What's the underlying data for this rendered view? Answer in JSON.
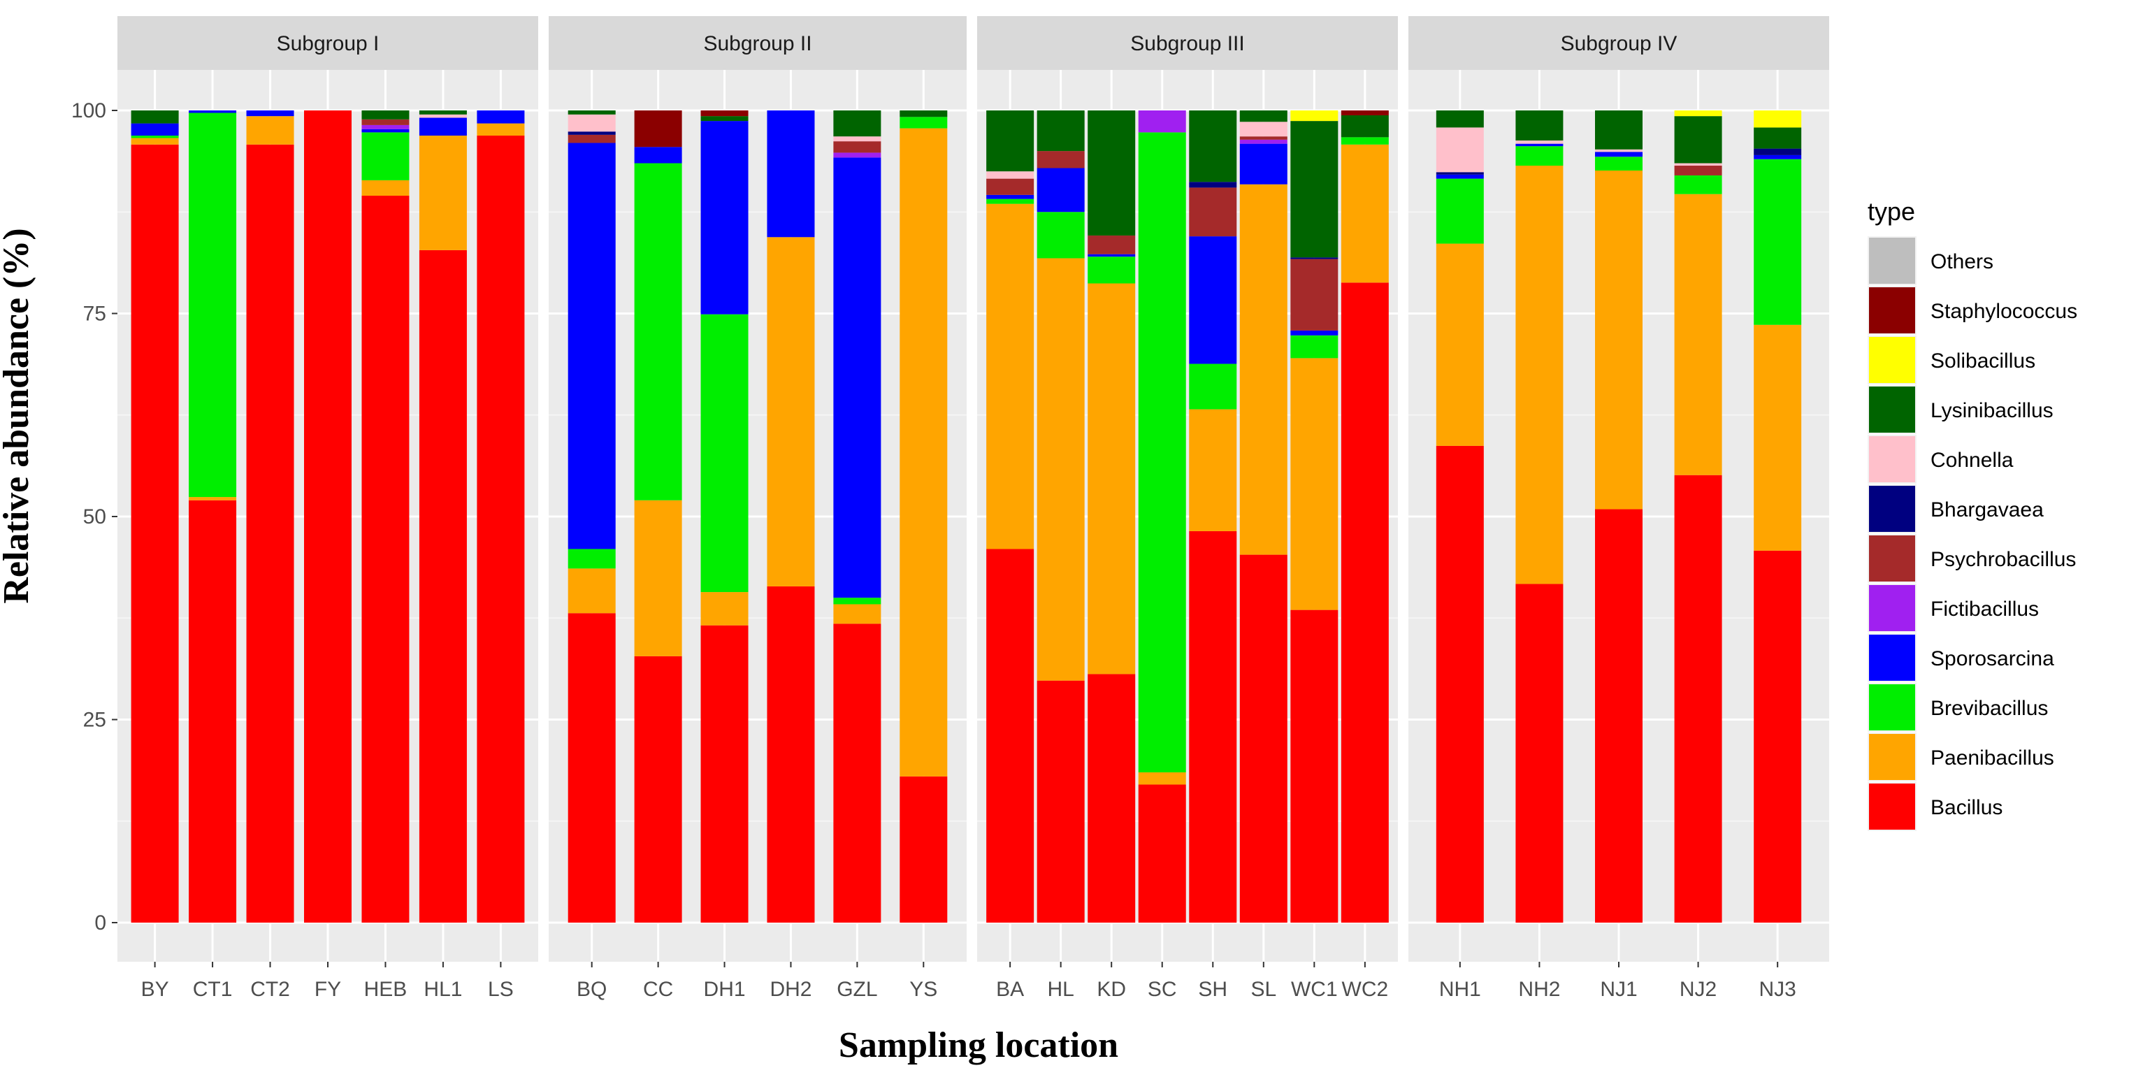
{
  "chart_data": {
    "type": "bar",
    "stacked": true,
    "ylabel": "Relative abundance (%)",
    "xlabel": "Sampling location",
    "ylim": [
      0,
      100
    ],
    "yticks": [
      0,
      25,
      50,
      75,
      100
    ],
    "legend": {
      "title": "type",
      "position": "right",
      "entries": [
        "Others",
        "Staphylococcus",
        "Solibacillus",
        "Lysinibacillus",
        "Cohnella",
        "Bhargavaea",
        "Psychrobacillus",
        "Fictibacillus",
        "Sporosarcina",
        "Brevibacillus",
        "Paenibacillus",
        "Bacillus"
      ]
    },
    "series_colors": {
      "Bacillus": "#FF0000",
      "Paenibacillus": "#FFA500",
      "Brevibacillus": "#00EE00",
      "Sporosarcina": "#0000FF",
      "Fictibacillus": "#A020F0",
      "Psychrobacillus": "#A52A2A",
      "Bhargavaea": "#000080",
      "Cohnella": "#FFC0CB",
      "Lysinibacillus": "#006400",
      "Solibacillus": "#FFFF00",
      "Staphylococcus": "#8B0000",
      "Others": "#BEBEBE"
    },
    "stack_order": [
      "Bacillus",
      "Paenibacillus",
      "Brevibacillus",
      "Sporosarcina",
      "Fictibacillus",
      "Psychrobacillus",
      "Bhargavaea",
      "Cohnella",
      "Lysinibacillus",
      "Solibacillus",
      "Staphylococcus",
      "Others"
    ],
    "panels": [
      {
        "title": "Subgroup I",
        "categories": [
          "BY",
          "CT1",
          "CT2",
          "FY",
          "HEB",
          "HL1",
          "LS"
        ],
        "bars": [
          {
            "Bacillus": 95.8,
            "Paenibacillus": 0.8,
            "Brevibacillus": 0.3,
            "Sporosarcina": 1.5,
            "Lysinibacillus": 1.6
          },
          {
            "Bacillus": 52.0,
            "Paenibacillus": 0.4,
            "Brevibacillus": 47.3,
            "Sporosarcina": 0.3
          },
          {
            "Bacillus": 95.8,
            "Paenibacillus": 3.5,
            "Sporosarcina": 0.7
          },
          {
            "Bacillus": 100
          },
          {
            "Bacillus": 89.5,
            "Paenibacillus": 1.9,
            "Brevibacillus": 5.9,
            "Sporosarcina": 0.4,
            "Fictibacillus": 0.5,
            "Psychrobacillus": 0.7,
            "Lysinibacillus": 1.1
          },
          {
            "Bacillus": 82.8,
            "Paenibacillus": 14.1,
            "Sporosarcina": 2.2,
            "Cohnella": 0.4,
            "Lysinibacillus": 0.5
          },
          {
            "Bacillus": 96.9,
            "Paenibacillus": 1.5,
            "Sporosarcina": 1.6
          }
        ]
      },
      {
        "title": "Subgroup II",
        "categories": [
          "BQ",
          "CC",
          "DH1",
          "DH2",
          "GZL",
          "YS"
        ],
        "bars": [
          {
            "Bacillus": 38.1,
            "Paenibacillus": 5.5,
            "Brevibacillus": 2.4,
            "Sporosarcina": 50.0,
            "Psychrobacillus": 1.0,
            "Bhargavaea": 0.4,
            "Cohnella": 2.1,
            "Lysinibacillus": 0.5
          },
          {
            "Bacillus": 32.8,
            "Paenibacillus": 19.2,
            "Brevibacillus": 41.5,
            "Sporosarcina": 2.0,
            "Staphylococcus": 4.5
          },
          {
            "Bacillus": 36.6,
            "Paenibacillus": 4.1,
            "Brevibacillus": 34.2,
            "Sporosarcina": 23.8,
            "Lysinibacillus": 0.6,
            "Staphylococcus": 0.7
          },
          {
            "Bacillus": 41.4,
            "Paenibacillus": 43.0,
            "Sporosarcina": 15.6
          },
          {
            "Bacillus": 36.8,
            "Paenibacillus": 2.4,
            "Brevibacillus": 0.8,
            "Sporosarcina": 54.2,
            "Fictibacillus": 0.6,
            "Psychrobacillus": 1.4,
            "Cohnella": 0.6,
            "Lysinibacillus": 3.2
          },
          {
            "Bacillus": 18.0,
            "Paenibacillus": 79.8,
            "Brevibacillus": 1.4,
            "Lysinibacillus": 0.8
          }
        ]
      },
      {
        "title": "Subgroup III",
        "categories": [
          "BA",
          "HL",
          "KD",
          "SC",
          "SH",
          "SL",
          "WC1",
          "WC2"
        ],
        "bars": [
          {
            "Bacillus": 46.0,
            "Paenibacillus": 42.5,
            "Brevibacillus": 0.6,
            "Sporosarcina": 0.5,
            "Cohnella": 0.9,
            "Psychrobacillus": 2.0,
            "Lysinibacillus": 7.5
          },
          {
            "Bacillus": 29.8,
            "Paenibacillus": 52.0,
            "Brevibacillus": 5.7,
            "Sporosarcina": 5.4,
            "Psychrobacillus": 2.1,
            "Lysinibacillus": 5.0
          },
          {
            "Bacillus": 30.6,
            "Paenibacillus": 48.1,
            "Brevibacillus": 3.3,
            "Sporosarcina": 0.3,
            "Psychrobacillus": 2.3,
            "Lysinibacillus": 15.4
          },
          {
            "Bacillus": 17.0,
            "Paenibacillus": 1.5,
            "Brevibacillus": 78.8,
            "Fictibacillus": 2.7
          },
          {
            "Bacillus": 48.2,
            "Paenibacillus": 15.0,
            "Brevibacillus": 5.6,
            "Sporosarcina": 15.7,
            "Psychrobacillus": 6.0,
            "Bhargavaea": 0.7,
            "Lysinibacillus": 8.8
          },
          {
            "Bacillus": 45.3,
            "Paenibacillus": 45.6,
            "Sporosarcina": 5.0,
            "Fictibacillus": 0.5,
            "Psychrobacillus": 0.4,
            "Cohnella": 1.8,
            "Lysinibacillus": 1.4
          },
          {
            "Bacillus": 38.5,
            "Paenibacillus": 31.0,
            "Brevibacillus": 2.8,
            "Sporosarcina": 0.6,
            "Psychrobacillus": 8.8,
            "Bhargavaea": 0.2,
            "Lysinibacillus": 16.8,
            "Solibacillus": 1.3
          },
          {
            "Bacillus": 78.8,
            "Paenibacillus": 17.0,
            "Brevibacillus": 0.9,
            "Lysinibacillus": 2.7,
            "Staphylococcus": 0.6
          }
        ]
      },
      {
        "title": "Subgroup IV",
        "categories": [
          "NH1",
          "NH2",
          "NJ1",
          "NJ2",
          "NJ3"
        ],
        "bars": [
          {
            "Bacillus": 58.7,
            "Paenibacillus": 24.9,
            "Brevibacillus": 8.0,
            "Sporosarcina": 0.5,
            "Bhargavaea": 0.3,
            "Cohnella": 5.5,
            "Lysinibacillus": 2.1
          },
          {
            "Bacillus": 41.7,
            "Paenibacillus": 51.5,
            "Brevibacillus": 2.4,
            "Sporosarcina": 0.3,
            "Cohnella": 0.4,
            "Lysinibacillus": 3.7
          },
          {
            "Bacillus": 50.9,
            "Paenibacillus": 41.7,
            "Brevibacillus": 1.7,
            "Sporosarcina": 0.6,
            "Cohnella": 0.3,
            "Lysinibacillus": 4.8
          },
          {
            "Bacillus": 55.1,
            "Paenibacillus": 34.6,
            "Brevibacillus": 2.3,
            "Psychrobacillus": 1.2,
            "Cohnella": 0.3,
            "Lysinibacillus": 5.8,
            "Solibacillus": 0.7
          },
          {
            "Bacillus": 45.8,
            "Paenibacillus": 27.8,
            "Brevibacillus": 20.4,
            "Sporosarcina": 0.5,
            "Bhargavaea": 0.8,
            "Lysinibacillus": 2.6,
            "Solibacillus": 2.1
          }
        ]
      }
    ]
  }
}
